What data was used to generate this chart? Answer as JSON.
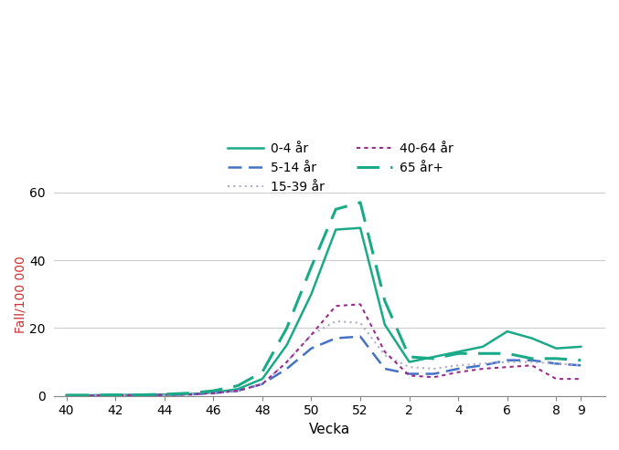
{
  "title": "",
  "ylabel": "Fall/100 000",
  "xlabel": "Vecka",
  "ylim": [
    0,
    60
  ],
  "yticks": [
    0,
    20,
    40,
    60
  ],
  "weeks": [
    40,
    41,
    42,
    43,
    44,
    45,
    46,
    47,
    48,
    49,
    50,
    51,
    52,
    53,
    54,
    55,
    56,
    57,
    58,
    59,
    60,
    61
  ],
  "xtick_labels": [
    "40",
    "42",
    "44",
    "46",
    "48",
    "50",
    "52",
    "2",
    "4",
    "6",
    "8",
    "9"
  ],
  "xtick_positions": [
    40,
    42,
    44,
    46,
    48,
    50,
    52,
    54,
    56,
    58,
    60,
    61
  ],
  "series": [
    {
      "label": "0-4 år",
      "color": "#1aaa88",
      "dashes": [],
      "linewidth": 1.8,
      "values": [
        0.2,
        0.2,
        0.3,
        0.3,
        0.4,
        0.5,
        1.0,
        2.0,
        5.0,
        15.0,
        30.0,
        49.0,
        49.5,
        21.0,
        10.0,
        11.5,
        13.0,
        14.5,
        19.0,
        17.0,
        14.0,
        14.5
      ]
    },
    {
      "label": "5-14 år",
      "color": "#4472c4",
      "dashes": [
        6,
        3
      ],
      "linewidth": 1.8,
      "values": [
        0.1,
        0.1,
        0.2,
        0.2,
        0.3,
        0.4,
        0.8,
        1.5,
        3.5,
        8.0,
        14.0,
        17.0,
        17.5,
        8.0,
        6.5,
        6.5,
        8.0,
        9.0,
        10.5,
        10.5,
        9.5,
        9.0
      ]
    },
    {
      "label": "15-39 år",
      "color": "#aaaacc",
      "dashes": [
        1,
        2
      ],
      "linewidth": 1.5,
      "values": [
        0.1,
        0.1,
        0.2,
        0.2,
        0.3,
        0.4,
        0.8,
        1.5,
        3.5,
        10.0,
        18.0,
        22.0,
        21.5,
        12.0,
        8.5,
        8.0,
        9.0,
        9.5,
        10.0,
        10.0,
        9.5,
        9.0
      ]
    },
    {
      "label": "40-64 år",
      "color": "#9b2d8e",
      "dashes": [
        2,
        2
      ],
      "linewidth": 1.5,
      "values": [
        0.1,
        0.1,
        0.2,
        0.2,
        0.3,
        0.4,
        0.8,
        1.5,
        3.5,
        10.0,
        18.0,
        26.5,
        27.0,
        13.0,
        6.0,
        5.5,
        7.0,
        8.0,
        8.5,
        9.0,
        5.0,
        5.0
      ]
    },
    {
      "label": "65 år+",
      "color": "#1aaa88",
      "dashes": [
        8,
        4
      ],
      "linewidth": 2.2,
      "values": [
        0.2,
        0.2,
        0.3,
        0.3,
        0.5,
        0.8,
        1.5,
        3.0,
        7.0,
        20.0,
        38.0,
        55.0,
        57.0,
        28.0,
        11.5,
        11.0,
        12.5,
        12.5,
        12.5,
        11.0,
        11.0,
        10.5
      ]
    }
  ],
  "background_color": "#ffffff",
  "grid_color": "#cccccc",
  "axis_color": "#888888"
}
